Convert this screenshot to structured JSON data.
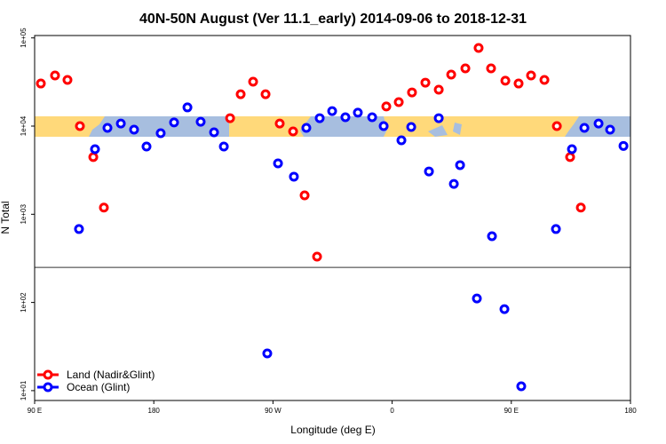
{
  "chart_data": {
    "type": "scatter",
    "title": "40N-50N August (Ver 11.1_early)   2014-09-06 to 2018-12-31",
    "xlabel": "Longitude (deg E)",
    "ylabel": "N Total",
    "x_scale": "linear, unwrapped degrees east (90 to 540)",
    "y_scale": "log10",
    "xlim": [
      90,
      540
    ],
    "ylim": [
      7,
      150000
    ],
    "x_ticks": [
      {
        "value": 90,
        "label": "90 E"
      },
      {
        "value": 180,
        "label": "180"
      },
      {
        "value": 270,
        "label": "90 W"
      },
      {
        "value": 360,
        "label": "0"
      },
      {
        "value": 450,
        "label": "90 E"
      },
      {
        "value": 540,
        "label": "180"
      }
    ],
    "y_ticks": [
      {
        "value": 100000,
        "label": "1e+05"
      },
      {
        "value": 10000,
        "label": "1e+04"
      },
      {
        "value": 1000,
        "label": "1e+03"
      },
      {
        "value": 100,
        "label": "1e+02"
      },
      {
        "value": 10,
        "label": "1e+01"
      }
    ],
    "reference_line_value": 250,
    "legend_position": "bottom-left",
    "grid": false,
    "series": [
      {
        "name": "Land (Nadir&Glint)",
        "color": "#ff0000",
        "points": [
          [
            94.7,
            30400
          ],
          [
            105.4,
            37500
          ],
          [
            114.8,
            33400
          ],
          [
            124.2,
            10000
          ],
          [
            134.3,
            4450
          ],
          [
            142.3,
            1190
          ],
          [
            237.6,
            12300
          ],
          [
            245.6,
            23000
          ],
          [
            255.0,
            31900
          ],
          [
            264.4,
            23000
          ],
          [
            275.1,
            10700
          ],
          [
            285.2,
            8700
          ],
          [
            293.9,
            1640
          ],
          [
            303.3,
            331
          ],
          [
            355.6,
            16700
          ],
          [
            365.0,
            18700
          ],
          [
            375.0,
            24100
          ],
          [
            385.1,
            31100
          ],
          [
            395.2,
            25900
          ],
          [
            404.6,
            38400
          ],
          [
            415.3,
            45100
          ],
          [
            425.3,
            76900
          ],
          [
            434.7,
            45100
          ],
          [
            445.5,
            32700
          ],
          [
            455.5,
            30400
          ],
          [
            464.9,
            37500
          ],
          [
            475.0,
            33400
          ],
          [
            484.4,
            10000
          ],
          [
            494.4,
            4450
          ],
          [
            502.5,
            1190
          ]
        ]
      },
      {
        "name": "Ocean (Glint)",
        "color": "#0000ff",
        "points": [
          [
            123.5,
            680
          ],
          [
            135.6,
            5470
          ],
          [
            145.0,
            9550
          ],
          [
            155.1,
            10700
          ],
          [
            165.1,
            9110
          ],
          [
            174.5,
            5860
          ],
          [
            185.2,
            8300
          ],
          [
            195.3,
            11000
          ],
          [
            205.4,
            16300
          ],
          [
            215.4,
            11200
          ],
          [
            225.5,
            8500
          ],
          [
            232.9,
            5860
          ],
          [
            265.7,
            26.4
          ],
          [
            273.8,
            3780
          ],
          [
            285.8,
            2670
          ],
          [
            295.2,
            9550
          ],
          [
            305.3,
            12300
          ],
          [
            314.7,
            14800
          ],
          [
            324.7,
            12600
          ],
          [
            334.1,
            14200
          ],
          [
            344.9,
            12600
          ],
          [
            353.6,
            10000
          ],
          [
            367.0,
            6900
          ],
          [
            374.4,
            9770
          ],
          [
            387.8,
            3060
          ],
          [
            395.2,
            12300
          ],
          [
            406.6,
            2210
          ],
          [
            411.3,
            3610
          ],
          [
            424.0,
            111
          ],
          [
            435.4,
            564
          ],
          [
            444.8,
            84
          ],
          [
            457.5,
            11.2
          ],
          [
            483.7,
            680
          ],
          [
            495.8,
            5470
          ],
          [
            505.2,
            9550
          ],
          [
            515.9,
            10700
          ],
          [
            524.6,
            9110
          ],
          [
            534.7,
            5960
          ]
        ]
      }
    ],
    "map_strip_colors": {
      "land": "#ffd97a",
      "ocean": "#a7bedf"
    }
  }
}
